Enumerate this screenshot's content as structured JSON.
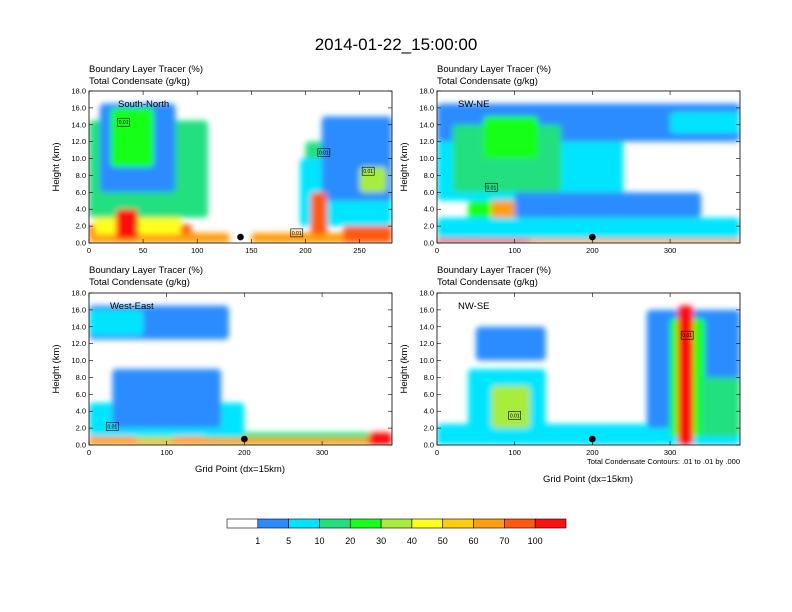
{
  "title": "2014-01-22_15:00:00",
  "colorbar": {
    "colors": [
      "#ffffff",
      "#2a8cff",
      "#00e5ff",
      "#22e080",
      "#18ff18",
      "#a8ec3c",
      "#ffff1c",
      "#ffcc10",
      "#ff9e10",
      "#ff5a10",
      "#ff1010"
    ],
    "labels": [
      "1",
      "5",
      "10",
      "20",
      "30",
      "40",
      "50",
      "60",
      "70",
      "100"
    ]
  },
  "note": "Total Condensate Contours: .01 to .01 by .000",
  "chart_data": [
    {
      "type": "heatmap",
      "title_line1": "Boundary Layer Tracer   (%)",
      "title_line2": "Total Condensate   (g/kg)",
      "region_label": "South-North",
      "ylabel": "Height (km)",
      "xlabel": "",
      "xlim": [
        0,
        280
      ],
      "ylim": [
        0,
        18
      ],
      "xticks": [
        0,
        50,
        100,
        150,
        200,
        250
      ],
      "yticks": [
        0.0,
        2.0,
        4.0,
        6.0,
        8.0,
        10.0,
        12.0,
        14.0,
        16.0,
        18.0
      ],
      "ytick_labels": [
        "0.0",
        "2.0",
        "4.0",
        "6.0",
        "8.0",
        "10.0",
        "12.0",
        "14.0",
        "16.0",
        "18.0"
      ],
      "marker": {
        "x": 140,
        "y": 0.7
      },
      "contour_labels": [
        {
          "text": "0.01",
          "x": 32,
          "y": 14.3
        },
        {
          "text": "0.01",
          "x": 217,
          "y": 10.7
        },
        {
          "text": "0.01",
          "x": 258,
          "y": 8.5
        },
        {
          "text": "0.01",
          "x": 192,
          "y": 1.2
        }
      ],
      "blobs": [
        {
          "x": [
            0,
            95
          ],
          "y": [
            0,
            2.2
          ],
          "level": 9
        },
        {
          "x": [
            0,
            130
          ],
          "y": [
            0,
            1.2
          ],
          "level": 8
        },
        {
          "x": [
            5,
            85
          ],
          "y": [
            1,
            6
          ],
          "level": 6
        },
        {
          "x": [
            0,
            110
          ],
          "y": [
            3,
            14.5
          ],
          "level": 3
        },
        {
          "x": [
            10,
            80
          ],
          "y": [
            6,
            16.5
          ],
          "level": 1
        },
        {
          "x": [
            20,
            60
          ],
          "y": [
            9,
            16
          ],
          "level": 4
        },
        {
          "x": [
            25,
            45
          ],
          "y": [
            0.5,
            4
          ],
          "level": 10
        },
        {
          "x": [
            150,
            280
          ],
          "y": [
            0,
            1.2
          ],
          "level": 8
        },
        {
          "x": [
            235,
            280
          ],
          "y": [
            0,
            4
          ],
          "level": 9
        },
        {
          "x": [
            200,
            230
          ],
          "y": [
            2,
            12
          ],
          "level": 3
        },
        {
          "x": [
            195,
            280
          ],
          "y": [
            2,
            10
          ],
          "level": 2
        },
        {
          "x": [
            215,
            280
          ],
          "y": [
            5,
            15
          ],
          "level": 1
        },
        {
          "x": [
            250,
            275
          ],
          "y": [
            6,
            9
          ],
          "level": 5
        },
        {
          "x": [
            205,
            220
          ],
          "y": [
            1,
            6
          ],
          "level": 9
        }
      ]
    },
    {
      "type": "heatmap",
      "title_line1": "Boundary Layer Tracer   (%)",
      "title_line2": "Total Condensate   (g/kg)",
      "region_label": "SW-NE",
      "ylabel": "Height (km)",
      "xlabel": "",
      "xlim": [
        0,
        390
      ],
      "ylim": [
        0,
        18
      ],
      "xticks": [
        0,
        100,
        200,
        300
      ],
      "yticks": [
        0.0,
        2.0,
        4.0,
        6.0,
        8.0,
        10.0,
        12.0,
        14.0,
        16.0,
        18.0
      ],
      "ytick_labels": [
        "0.0",
        "2.0",
        "4.0",
        "6.0",
        "8.0",
        "10.0",
        "12.0",
        "14.0",
        "16.0",
        "18.0"
      ],
      "marker": {
        "x": 200,
        "y": 0.7
      },
      "contour_labels": [
        {
          "text": "0.01",
          "x": 70,
          "y": 6.6
        }
      ],
      "blobs": [
        {
          "x": [
            0,
            390
          ],
          "y": [
            0,
            2
          ],
          "level": 8
        },
        {
          "x": [
            0,
            120
          ],
          "y": [
            0,
            1
          ],
          "level": 10
        },
        {
          "x": [
            40,
            160
          ],
          "y": [
            1,
            5
          ],
          "level": 4
        },
        {
          "x": [
            70,
            110
          ],
          "y": [
            1,
            6
          ],
          "level": 8
        },
        {
          "x": [
            0,
            390
          ],
          "y": [
            0.5,
            3
          ],
          "level": 2
        },
        {
          "x": [
            0,
            240
          ],
          "y": [
            5,
            15
          ],
          "level": 2
        },
        {
          "x": [
            0,
            390
          ],
          "y": [
            12,
            16.5
          ],
          "level": 1
        },
        {
          "x": [
            20,
            160
          ],
          "y": [
            6,
            14
          ],
          "level": 3
        },
        {
          "x": [
            60,
            130
          ],
          "y": [
            10,
            15
          ],
          "level": 4
        },
        {
          "x": [
            300,
            390
          ],
          "y": [
            13,
            15.5
          ],
          "level": 2
        },
        {
          "x": [
            100,
            340
          ],
          "y": [
            3,
            6
          ],
          "level": 1
        }
      ]
    },
    {
      "type": "heatmap",
      "title_line1": "Boundary Layer Tracer   (%)",
      "title_line2": "Total Condensate   (g/kg)",
      "region_label": "West-East",
      "ylabel": "Height (km)",
      "xlabel": "Grid Point (dx=15km)",
      "xlim": [
        0,
        390
      ],
      "ylim": [
        0,
        18
      ],
      "xticks": [
        0,
        100,
        200,
        300
      ],
      "yticks": [
        0.0,
        2.0,
        4.0,
        6.0,
        8.0,
        10.0,
        12.0,
        14.0,
        16.0,
        18.0
      ],
      "ytick_labels": [
        "0.0",
        "2.0",
        "4.0",
        "6.0",
        "8.0",
        "10.0",
        "12.0",
        "14.0",
        "16.0",
        "18.0"
      ],
      "marker": {
        "x": 200,
        "y": 0.7
      },
      "contour_labels": [
        {
          "text": "0.01",
          "x": 30,
          "y": 2.2
        }
      ],
      "blobs": [
        {
          "x": [
            0,
            390
          ],
          "y": [
            0,
            1.5
          ],
          "level": 3
        },
        {
          "x": [
            0,
            390
          ],
          "y": [
            0,
            0.8
          ],
          "level": 8
        },
        {
          "x": [
            0,
            150
          ],
          "y": [
            0,
            2.5
          ],
          "level": 8
        },
        {
          "x": [
            60,
            110
          ],
          "y": [
            0.5,
            5
          ],
          "level": 5
        },
        {
          "x": [
            0,
            200
          ],
          "y": [
            1,
            5
          ],
          "level": 2
        },
        {
          "x": [
            30,
            170
          ],
          "y": [
            2,
            9
          ],
          "level": 1
        },
        {
          "x": [
            0,
            180
          ],
          "y": [
            12.5,
            16.5
          ],
          "level": 1
        },
        {
          "x": [
            0,
            70
          ],
          "y": [
            13,
            16
          ],
          "level": 2
        },
        {
          "x": [
            360,
            390
          ],
          "y": [
            0,
            1.5
          ],
          "level": 10
        }
      ]
    },
    {
      "type": "heatmap",
      "title_line1": "Boundary Layer Tracer   (%)",
      "title_line2": "Total Condensate   (g/kg)",
      "region_label": "NW-SE",
      "ylabel": "Height (km)",
      "xlabel": "Grid Point (dx=15km)",
      "xlim": [
        0,
        390
      ],
      "ylim": [
        0,
        18
      ],
      "xticks": [
        0,
        100,
        200,
        300
      ],
      "yticks": [
        0.0,
        2.0,
        4.0,
        6.0,
        8.0,
        10.0,
        12.0,
        14.0,
        16.0,
        18.0
      ],
      "ytick_labels": [
        "0.0",
        "2.0",
        "4.0",
        "6.0",
        "8.0",
        "10.0",
        "12.0",
        "14.0",
        "16.0",
        "18.0"
      ],
      "marker": {
        "x": 200,
        "y": 0.7
      },
      "contour_labels": [
        {
          "text": "0.01",
          "x": 100,
          "y": 3.5
        },
        {
          "text": "0.01",
          "x": 322,
          "y": 13
        }
      ],
      "blobs": [
        {
          "x": [
            0,
            390
          ],
          "y": [
            0,
            1.2
          ],
          "level": 9
        },
        {
          "x": [
            0,
            390
          ],
          "y": [
            0,
            2.5
          ],
          "level": 2
        },
        {
          "x": [
            40,
            140
          ],
          "y": [
            1,
            9
          ],
          "level": 2
        },
        {
          "x": [
            70,
            120
          ],
          "y": [
            2,
            7
          ],
          "level": 5
        },
        {
          "x": [
            50,
            140
          ],
          "y": [
            10,
            14
          ],
          "level": 1
        },
        {
          "x": [
            270,
            390
          ],
          "y": [
            2,
            16
          ],
          "level": 1
        },
        {
          "x": [
            300,
            345
          ],
          "y": [
            1,
            15
          ],
          "level": 4
        },
        {
          "x": [
            310,
            330
          ],
          "y": [
            0,
            16.5
          ],
          "level": 10
        },
        {
          "x": [
            340,
            390
          ],
          "y": [
            1,
            8
          ],
          "level": 3
        }
      ]
    }
  ]
}
